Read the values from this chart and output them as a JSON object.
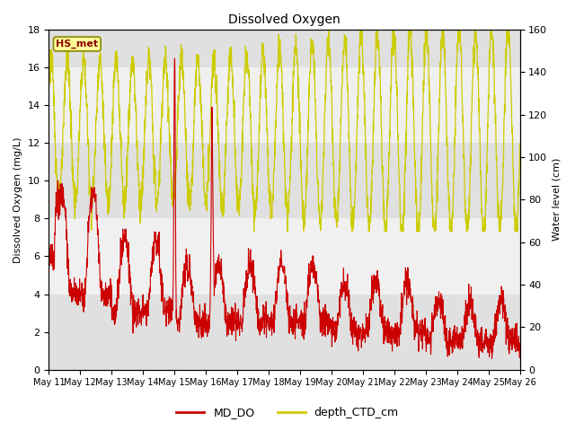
{
  "title": "Dissolved Oxygen",
  "ylabel_left": "Dissolved Oxygen (mg/L)",
  "ylabel_right": "Water level (cm)",
  "ylim_left": [
    0,
    18
  ],
  "ylim_right": [
    0,
    160
  ],
  "yticks_left": [
    0,
    2,
    4,
    6,
    8,
    10,
    12,
    14,
    16,
    18
  ],
  "yticks_right": [
    0,
    20,
    40,
    60,
    80,
    100,
    120,
    140,
    160
  ],
  "xtick_labels": [
    "May 11",
    "May 12",
    "May 13",
    "May 14",
    "May 15",
    "May 16",
    "May 17",
    "May 18",
    "May 19",
    "May 20",
    "May 21",
    "May 22",
    "May 23",
    "May 24",
    "May 25",
    "May 26"
  ],
  "legend_labels": [
    "MD_DO",
    "depth_CTD_cm"
  ],
  "legend_colors": [
    "#cc0000",
    "#cccc00"
  ],
  "line_color_do": "#cc0000",
  "line_color_depth": "#cccc00",
  "annotation_text": "HS_met",
  "annotation_box_color": "#ffff99",
  "annotation_border_color": "#888800",
  "annotation_text_color": "#8b0000",
  "bg_band_dark": "#e0e0e0",
  "bg_band_light": "#f0f0f0"
}
